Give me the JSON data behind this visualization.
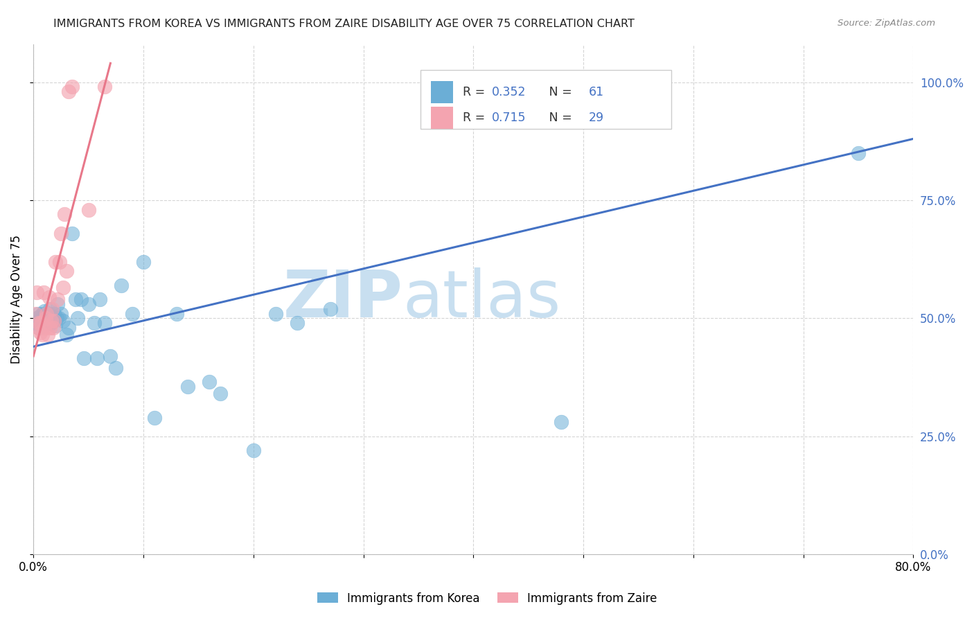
{
  "title": "IMMIGRANTS FROM KOREA VS IMMIGRANTS FROM ZAIRE DISABILITY AGE OVER 75 CORRELATION CHART",
  "source": "Source: ZipAtlas.com",
  "ylabel": "Disability Age Over 75",
  "xmin": 0.0,
  "xmax": 0.8,
  "ymin": 0.0,
  "ymax": 1.08,
  "yticks": [
    0.0,
    0.25,
    0.5,
    0.75,
    1.0
  ],
  "ytick_labels": [
    "0.0%",
    "25.0%",
    "50.0%",
    "75.0%",
    "100.0%"
  ],
  "xticks": [
    0.0,
    0.1,
    0.2,
    0.3,
    0.4,
    0.5,
    0.6,
    0.7,
    0.8
  ],
  "xtick_labels": [
    "0.0%",
    "",
    "",
    "",
    "",
    "",
    "",
    "",
    "80.0%"
  ],
  "korea_color": "#6baed6",
  "zaire_color": "#f4a4b0",
  "korea_R": 0.352,
  "korea_N": 61,
  "zaire_R": 0.715,
  "zaire_N": 29,
  "korea_line_color": "#4472c4",
  "zaire_line_color": "#e8788a",
  "watermark_color": "#c8dff0",
  "korea_scatter_x": [
    0.002,
    0.003,
    0.004,
    0.005,
    0.005,
    0.006,
    0.007,
    0.007,
    0.008,
    0.008,
    0.009,
    0.009,
    0.01,
    0.01,
    0.011,
    0.011,
    0.012,
    0.012,
    0.013,
    0.013,
    0.014,
    0.015,
    0.015,
    0.016,
    0.017,
    0.018,
    0.019,
    0.02,
    0.021,
    0.022,
    0.023,
    0.025,
    0.027,
    0.03,
    0.032,
    0.035,
    0.038,
    0.04,
    0.043,
    0.046,
    0.05,
    0.055,
    0.058,
    0.06,
    0.065,
    0.07,
    0.075,
    0.08,
    0.09,
    0.1,
    0.11,
    0.13,
    0.14,
    0.16,
    0.17,
    0.2,
    0.22,
    0.24,
    0.27,
    0.48,
    0.75
  ],
  "korea_scatter_y": [
    0.49,
    0.5,
    0.51,
    0.48,
    0.495,
    0.505,
    0.49,
    0.5,
    0.495,
    0.51,
    0.485,
    0.5,
    0.505,
    0.515,
    0.49,
    0.5,
    0.495,
    0.51,
    0.5,
    0.49,
    0.51,
    0.505,
    0.52,
    0.49,
    0.5,
    0.495,
    0.51,
    0.485,
    0.5,
    0.53,
    0.5,
    0.51,
    0.495,
    0.465,
    0.48,
    0.68,
    0.54,
    0.5,
    0.54,
    0.415,
    0.53,
    0.49,
    0.415,
    0.54,
    0.49,
    0.42,
    0.395,
    0.57,
    0.51,
    0.62,
    0.29,
    0.51,
    0.355,
    0.365,
    0.34,
    0.22,
    0.51,
    0.49,
    0.52,
    0.28,
    0.85
  ],
  "zaire_scatter_x": [
    0.002,
    0.003,
    0.004,
    0.005,
    0.006,
    0.007,
    0.008,
    0.009,
    0.01,
    0.011,
    0.012,
    0.013,
    0.014,
    0.015,
    0.016,
    0.017,
    0.018,
    0.019,
    0.02,
    0.022,
    0.024,
    0.025,
    0.027,
    0.028,
    0.03,
    0.032,
    0.035,
    0.05,
    0.065
  ],
  "zaire_scatter_y": [
    0.51,
    0.555,
    0.48,
    0.49,
    0.47,
    0.49,
    0.465,
    0.555,
    0.48,
    0.5,
    0.51,
    0.465,
    0.545,
    0.48,
    0.495,
    0.52,
    0.48,
    0.495,
    0.62,
    0.54,
    0.62,
    0.68,
    0.565,
    0.72,
    0.6,
    0.98,
    0.99,
    0.73,
    0.99
  ],
  "korea_line_x": [
    0.0,
    0.8
  ],
  "korea_line_y": [
    0.44,
    0.88
  ],
  "zaire_line_x": [
    0.0,
    0.07
  ],
  "zaire_line_y": [
    0.42,
    1.04
  ]
}
